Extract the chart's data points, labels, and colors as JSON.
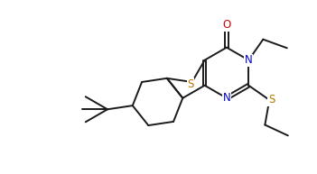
{
  "bg_color": "#ffffff",
  "line_color": "#1a1a1a",
  "atom_colors": {
    "O": "#cc0000",
    "N": "#0000cc",
    "S": "#b87800",
    "C": "#1a1a1a"
  },
  "lw": 1.4,
  "fs": 8.5,
  "figsize": [
    3.51,
    1.93
  ],
  "dpi": 100,
  "xlim": [
    0,
    10
  ],
  "ylim": [
    0,
    5.5
  ]
}
